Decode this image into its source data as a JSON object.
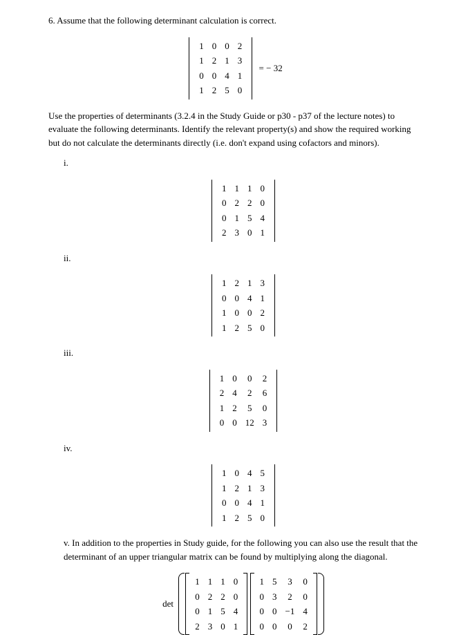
{
  "question": {
    "number": "6.",
    "intro": "Assume that the following determinant calculation is correct.",
    "given_det": {
      "rows": [
        [
          "1",
          "0",
          "0",
          "2"
        ],
        [
          "1",
          "2",
          "1",
          "3"
        ],
        [
          "0",
          "0",
          "4",
          "1"
        ],
        [
          "1",
          "2",
          "5",
          "0"
        ]
      ],
      "equals": "= − 32"
    },
    "explain": "Use the properties of determinants (3.2.4 in the Study Guide or p30 - p37 of the lecture notes) to evaluate the following determinants. Identify the relevant property(s) and show the required working but do not calculate the determinants directly (i.e. don't expand using cofactors and minors)."
  },
  "parts": {
    "i": {
      "label": "i.",
      "rows": [
        [
          "1",
          "1",
          "1",
          "0"
        ],
        [
          "0",
          "2",
          "2",
          "0"
        ],
        [
          "0",
          "1",
          "5",
          "4"
        ],
        [
          "2",
          "3",
          "0",
          "1"
        ]
      ]
    },
    "ii": {
      "label": "ii.",
      "rows": [
        [
          "1",
          "2",
          "1",
          "3"
        ],
        [
          "0",
          "0",
          "4",
          "1"
        ],
        [
          "1",
          "0",
          "0",
          "2"
        ],
        [
          "1",
          "2",
          "5",
          "0"
        ]
      ]
    },
    "iii": {
      "label": "iii.",
      "rows": [
        [
          "1",
          "0",
          "0",
          "2"
        ],
        [
          "2",
          "4",
          "2",
          "6"
        ],
        [
          "1",
          "2",
          "5",
          "0"
        ],
        [
          "0",
          "0",
          "12",
          "3"
        ]
      ]
    },
    "iv": {
      "label": "iv.",
      "rows": [
        [
          "1",
          "0",
          "4",
          "5"
        ],
        [
          "1",
          "2",
          "1",
          "3"
        ],
        [
          "0",
          "0",
          "4",
          "1"
        ],
        [
          "1",
          "2",
          "5",
          "0"
        ]
      ]
    },
    "v": {
      "label": "v.",
      "text": "In addition to the properties in Study guide, for the following you can also use the result that the determinant of an upper triangular matrix can be found by multiplying along the diagonal.",
      "detlabel": "det",
      "matA": [
        [
          "1",
          "1",
          "1",
          "0"
        ],
        [
          "0",
          "2",
          "2",
          "0"
        ],
        [
          "0",
          "1",
          "5",
          "4"
        ],
        [
          "2",
          "3",
          "0",
          "1"
        ]
      ],
      "matB": [
        [
          "1",
          "5",
          "3",
          "0"
        ],
        [
          "0",
          "3",
          "2",
          "0"
        ],
        [
          "0",
          "0",
          "−1",
          "4"
        ],
        [
          "0",
          "0",
          "0",
          "2"
        ]
      ]
    }
  }
}
